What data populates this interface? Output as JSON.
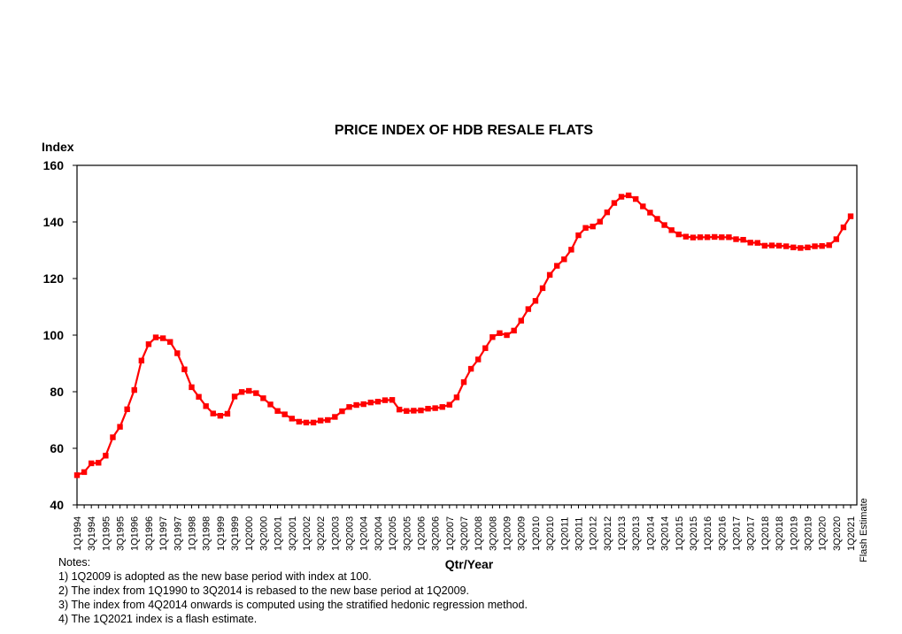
{
  "chart_data": {
    "type": "line",
    "title": "PRICE INDEX OF HDB RESALE FLATS",
    "xlabel": "Qtr/Year",
    "ylabel": "Index",
    "ylim": [
      40,
      160
    ],
    "yticks": [
      40,
      60,
      80,
      100,
      120,
      140,
      160
    ],
    "grid": false,
    "series_color": "#ff0000",
    "flash_label": "Flash Estimate",
    "x": [
      "1Q1994",
      "2Q1994",
      "3Q1994",
      "4Q1994",
      "1Q1995",
      "2Q1995",
      "3Q1995",
      "4Q1995",
      "1Q1996",
      "2Q1996",
      "3Q1996",
      "4Q1996",
      "1Q1997",
      "2Q1997",
      "3Q1997",
      "4Q1997",
      "1Q1998",
      "2Q1998",
      "3Q1998",
      "4Q1998",
      "1Q1999",
      "2Q1999",
      "3Q1999",
      "4Q1999",
      "1Q2000",
      "2Q2000",
      "3Q2000",
      "4Q2000",
      "1Q2001",
      "2Q2001",
      "3Q2001",
      "4Q2001",
      "1Q2002",
      "2Q2002",
      "3Q2002",
      "4Q2002",
      "1Q2003",
      "2Q2003",
      "3Q2003",
      "4Q2003",
      "1Q2004",
      "2Q2004",
      "3Q2004",
      "4Q2004",
      "1Q2005",
      "2Q2005",
      "3Q2005",
      "4Q2005",
      "1Q2006",
      "2Q2006",
      "3Q2006",
      "4Q2006",
      "1Q2007",
      "2Q2007",
      "3Q2007",
      "4Q2007",
      "1Q2008",
      "2Q2008",
      "3Q2008",
      "4Q2008",
      "1Q2009",
      "2Q2009",
      "3Q2009",
      "4Q2009",
      "1Q2010",
      "2Q2010",
      "3Q2010",
      "4Q2010",
      "1Q2011",
      "2Q2011",
      "3Q2011",
      "4Q2011",
      "1Q2012",
      "2Q2012",
      "3Q2012",
      "4Q2012",
      "1Q2013",
      "2Q2013",
      "3Q2013",
      "4Q2013",
      "1Q2014",
      "2Q2014",
      "3Q2014",
      "4Q2014",
      "1Q2015",
      "2Q2015",
      "3Q2015",
      "4Q2015",
      "1Q2016",
      "2Q2016",
      "3Q2016",
      "4Q2016",
      "1Q2017",
      "2Q2017",
      "3Q2017",
      "4Q2017",
      "1Q2018",
      "2Q2018",
      "3Q2018",
      "4Q2018",
      "1Q2019",
      "2Q2019",
      "3Q2019",
      "4Q2019",
      "1Q2020",
      "2Q2020",
      "3Q2020",
      "4Q2020",
      "1Q2021"
    ],
    "xtick_labels": [
      "1Q1994",
      "3Q1994",
      "1Q1995",
      "3Q1995",
      "1Q1996",
      "3Q1996",
      "1Q1997",
      "3Q1997",
      "1Q1998",
      "3Q1998",
      "1Q1999",
      "3Q1999",
      "1Q2000",
      "3Q2000",
      "1Q2001",
      "3Q2001",
      "1Q2002",
      "3Q2002",
      "1Q2003",
      "3Q2003",
      "1Q2004",
      "3Q2004",
      "1Q2005",
      "3Q2005",
      "1Q2006",
      "3Q2006",
      "1Q2007",
      "3Q2007",
      "1Q2008",
      "3Q2008",
      "1Q2009",
      "3Q2009",
      "1Q2010",
      "3Q2010",
      "1Q2011",
      "3Q2011",
      "1Q2012",
      "3Q2012",
      "1Q2013",
      "3Q2013",
      "1Q2014",
      "3Q2014",
      "1Q2015",
      "3Q2015",
      "1Q2016",
      "3Q2016",
      "1Q2017",
      "3Q2017",
      "1Q2018",
      "3Q2018",
      "1Q2019",
      "3Q2019",
      "1Q2020",
      "3Q2020",
      "1Q2021"
    ],
    "series": [
      {
        "name": "Price Index",
        "values": [
          50.5,
          51.6,
          54.7,
          54.9,
          57.4,
          63.9,
          67.6,
          73.8,
          80.6,
          91.0,
          96.8,
          99.2,
          98.9,
          97.6,
          93.6,
          87.9,
          81.6,
          78.2,
          74.9,
          72.3,
          71.5,
          72.2,
          78.3,
          79.9,
          80.3,
          79.5,
          77.7,
          75.5,
          73.2,
          72.0,
          70.5,
          69.4,
          69.1,
          69.1,
          69.8,
          70.0,
          71.1,
          73.1,
          74.6,
          75.3,
          75.6,
          76.2,
          76.5,
          77.0,
          77.1,
          73.7,
          73.2,
          73.3,
          73.4,
          74.0,
          74.2,
          74.6,
          75.4,
          78.0,
          83.4,
          88.1,
          91.4,
          95.4,
          99.3,
          100.7,
          100.0,
          101.6,
          105.1,
          109.2,
          112.1,
          116.6,
          121.3,
          124.5,
          126.8,
          130.2,
          135.3,
          137.9,
          138.4,
          140.1,
          143.4,
          146.7,
          148.9,
          149.4,
          148.1,
          145.5,
          143.3,
          141.1,
          138.9,
          137.1,
          135.6,
          134.8,
          134.5,
          134.6,
          134.6,
          134.7,
          134.6,
          134.6,
          133.9,
          133.7,
          132.7,
          132.6,
          131.6,
          131.7,
          131.6,
          131.4,
          131.0,
          130.8,
          131.0,
          131.4,
          131.5,
          131.8,
          133.9,
          138.1,
          142.0
        ]
      }
    ]
  },
  "notes": {
    "heading": "Notes:",
    "items": [
      "1) 1Q2009 is adopted as the new base period with index at 100.",
      "2) The index from 1Q1990 to 3Q2014 is rebased to the new base period at 1Q2009.",
      "3) The index from 4Q2014 onwards is computed using the stratified hedonic regression method.",
      "4) The 1Q2021 index is a flash estimate."
    ]
  }
}
